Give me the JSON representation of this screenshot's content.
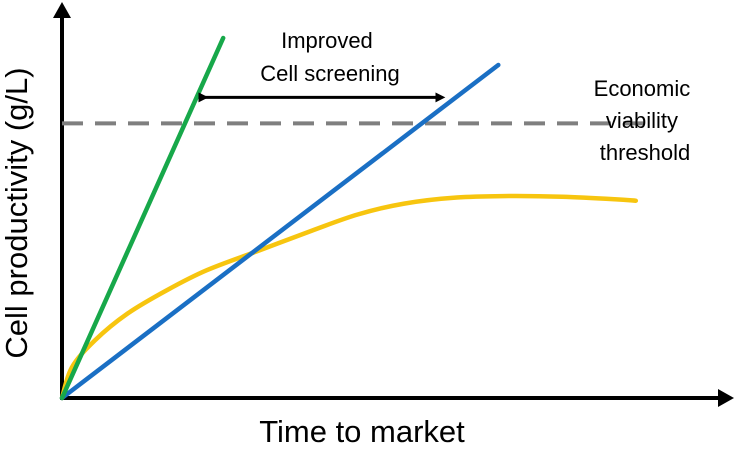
{
  "chart_data": {
    "type": "line",
    "xlabel": "Time to market",
    "ylabel": "Cell productivity (g/L)",
    "xlim": [
      0,
      100
    ],
    "ylim": [
      0,
      100
    ],
    "grid": false,
    "legend": "none",
    "series": [
      {
        "color": "#17a84a",
        "points": [
          [
            0,
            0
          ],
          [
            24.5,
            100
          ]
        ]
      },
      {
        "color": "#1a6fc4",
        "points": [
          [
            0,
            0
          ],
          [
            66.3,
            92.5
          ]
        ]
      },
      {
        "color": "#f7c50f",
        "points": [
          [
            0,
            0
          ],
          [
            1.5,
            8.5
          ],
          [
            5,
            16
          ],
          [
            10,
            23.5
          ],
          [
            16,
            30
          ],
          [
            22,
            35.5
          ],
          [
            30,
            41
          ],
          [
            38,
            46.5
          ],
          [
            45,
            51
          ],
          [
            52,
            54
          ],
          [
            60,
            55.7
          ],
          [
            68,
            56.1
          ],
          [
            76,
            55.9
          ],
          [
            84,
            55.2
          ],
          [
            87.2,
            54.8
          ]
        ]
      }
    ],
    "reference_lines": [
      {
        "type": "horizontal",
        "y": 76.3,
        "x_range": [
          0,
          90
        ],
        "color": "#7f7f7f",
        "style": "dashed",
        "label": [
          "Economic",
          "viability",
          "threshold"
        ]
      }
    ],
    "annotations": [
      {
        "type": "double-arrow",
        "y": 83.5,
        "x_range": [
          21.5,
          57.5
        ],
        "label": [
          "Improved",
          "Cell screening"
        ]
      }
    ]
  }
}
